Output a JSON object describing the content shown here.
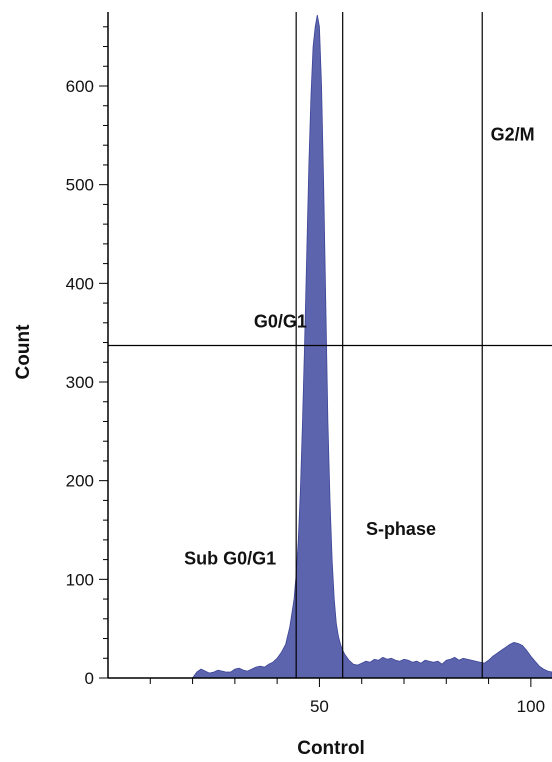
{
  "chart_data": {
    "type": "area",
    "title": "",
    "xlabel": "Control",
    "ylabel": "Count",
    "xlim": [
      0,
      105
    ],
    "ylim": [
      0,
      675
    ],
    "x_ticks": [
      50,
      100
    ],
    "y_ticks": [
      0,
      100,
      200,
      300,
      400,
      500,
      600
    ],
    "fill_color": "#5c64ae",
    "gates": {
      "vertical_lines": [
        44.5,
        55.5,
        88.5
      ],
      "horizontal_line": 337
    },
    "gate_labels": [
      {
        "text": "Sub G0/G1",
        "x": 18,
        "y": 115
      },
      {
        "text": "G0/G1",
        "x": 34.5,
        "y": 355
      },
      {
        "text": "S-phase",
        "x": 61,
        "y": 145
      },
      {
        "text": "G2/M",
        "x": 90.5,
        "y": 545
      }
    ],
    "series": [
      {
        "x": [
          20,
          21,
          22,
          23,
          24,
          25,
          26,
          27,
          28,
          29,
          30,
          31,
          32,
          33,
          34,
          35,
          36,
          37,
          38,
          39,
          40,
          41,
          42,
          43,
          44,
          44.5,
          45,
          45.5,
          46,
          46.5,
          47,
          47.5,
          48,
          48.5,
          49,
          49.5,
          50,
          50.5,
          51,
          51.5,
          52,
          52.5,
          53,
          53.5,
          54,
          54.5,
          55,
          55.5,
          56,
          57,
          58,
          59,
          60,
          61,
          62,
          63,
          64,
          65,
          66,
          67,
          68,
          69,
          70,
          71,
          72,
          73,
          74,
          75,
          76,
          77,
          78,
          79,
          80,
          81,
          82,
          83,
          84,
          85,
          86,
          87,
          88,
          89,
          90,
          91,
          92,
          93,
          94,
          95,
          96,
          97,
          98,
          99,
          100,
          101,
          102,
          103,
          104,
          105
        ],
        "y": [
          0,
          6,
          9,
          7,
          5,
          6,
          8,
          7,
          6,
          6,
          9,
          10,
          8,
          7,
          9,
          11,
          12,
          11,
          14,
          16,
          20,
          26,
          34,
          52,
          80,
          105,
          140,
          190,
          260,
          340,
          430,
          520,
          590,
          640,
          660,
          672,
          660,
          600,
          500,
          380,
          260,
          180,
          120,
          80,
          55,
          42,
          34,
          28,
          24,
          18,
          14,
          13,
          15,
          17,
          16,
          19,
          18,
          21,
          19,
          20,
          18,
          17,
          19,
          18,
          16,
          17,
          15,
          18,
          17,
          16,
          17,
          14,
          18,
          19,
          21,
          18,
          20,
          19,
          18,
          17,
          16,
          15,
          18,
          22,
          25,
          28,
          31,
          34,
          36,
          35,
          33,
          28,
          22,
          17,
          12,
          9,
          7,
          6
        ]
      }
    ]
  }
}
